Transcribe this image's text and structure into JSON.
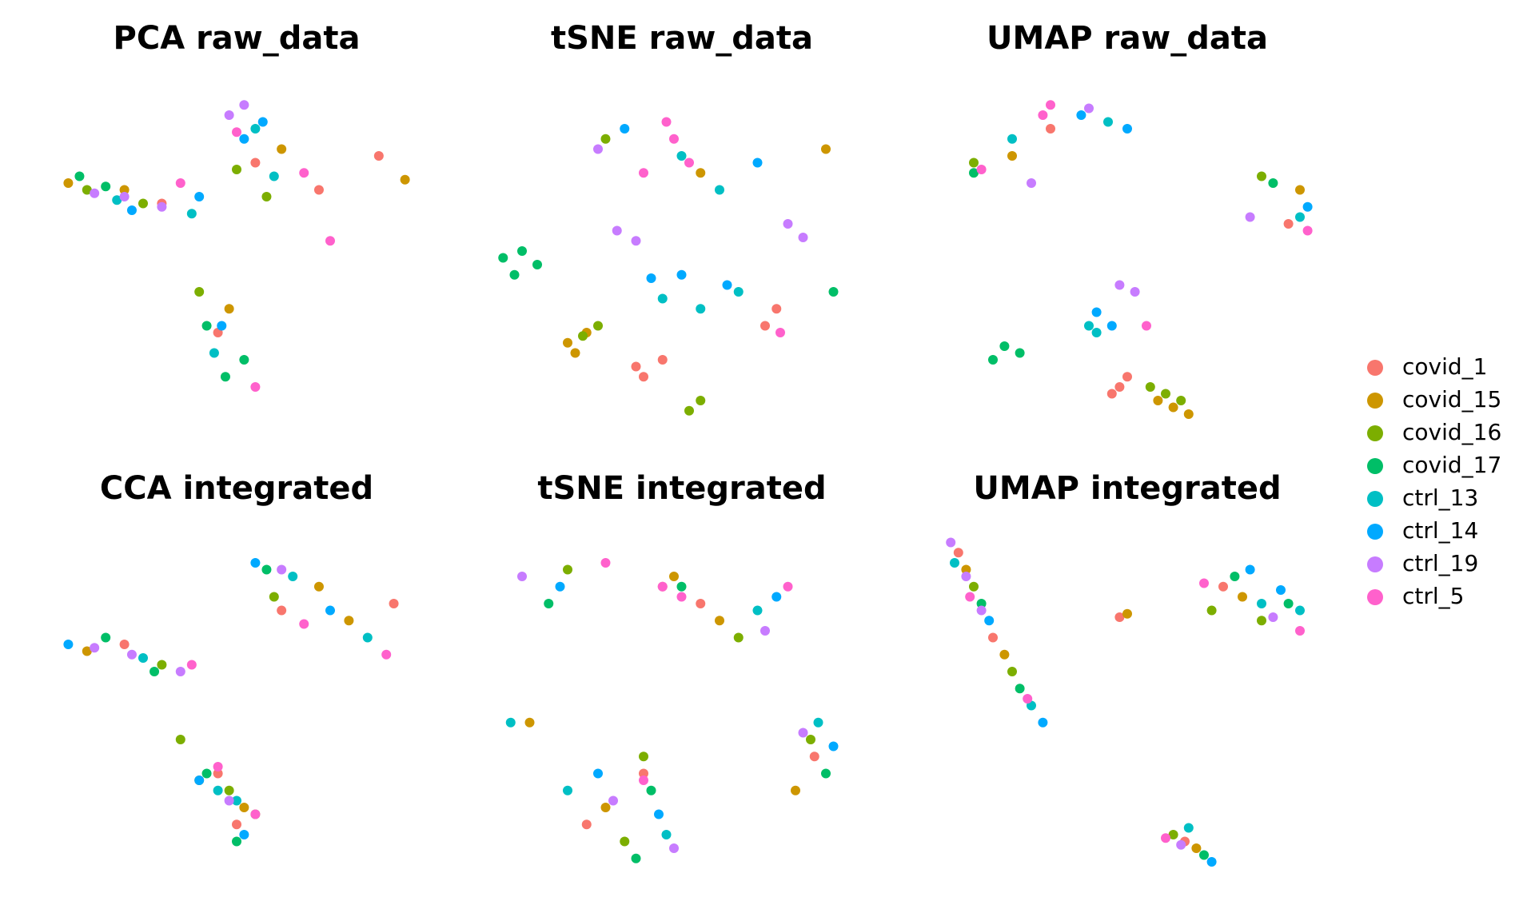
{
  "chart_data": [
    {
      "type": "scatter",
      "title": "PCA raw_data",
      "xlim": [
        0,
        100
      ],
      "ylim": [
        0,
        100
      ],
      "series": [
        {
          "x": [
            30,
            55,
            72,
            45,
            88
          ],
          "values": [
            66,
            78,
            70,
            28,
            80
          ]
        },
        {
          "x": [
            5,
            20,
            62,
            48,
            95
          ],
          "values": [
            72,
            70,
            82,
            35,
            73
          ]
        },
        {
          "x": [
            10,
            25,
            50,
            40,
            58
          ],
          "values": [
            70,
            66,
            76,
            40,
            68
          ]
        },
        {
          "x": [
            8,
            15,
            42,
            47,
            52
          ],
          "values": [
            74,
            71,
            30,
            15,
            20
          ]
        },
        {
          "x": [
            18,
            38,
            55,
            60,
            44
          ],
          "values": [
            67,
            63,
            88,
            74,
            22
          ]
        },
        {
          "x": [
            22,
            40,
            52,
            57,
            46
          ],
          "values": [
            64,
            68,
            85,
            90,
            30
          ]
        },
        {
          "x": [
            12,
            20,
            30,
            48,
            52
          ],
          "values": [
            69,
            68,
            65,
            92,
            95
          ]
        },
        {
          "x": [
            35,
            50,
            68,
            55,
            75
          ],
          "values": [
            72,
            87,
            75,
            12,
            55
          ]
        }
      ]
    },
    {
      "type": "scatter",
      "title": "tSNE raw_data",
      "xlim": [
        0,
        100
      ],
      "ylim": [
        0,
        100
      ],
      "series": [
        {
          "x": [
            40,
            45,
            38,
            72,
            75
          ],
          "values": [
            15,
            20,
            18,
            30,
            35
          ]
        },
        {
          "x": [
            20,
            25,
            22,
            55,
            88
          ],
          "values": [
            25,
            28,
            22,
            75,
            82
          ]
        },
        {
          "x": [
            24,
            28,
            52,
            55,
            30
          ],
          "values": [
            27,
            30,
            5,
            8,
            85
          ]
        },
        {
          "x": [
            3,
            8,
            12,
            6,
            90
          ],
          "values": [
            50,
            52,
            48,
            45,
            40
          ]
        },
        {
          "x": [
            45,
            55,
            65,
            50,
            60
          ],
          "values": [
            38,
            35,
            40,
            80,
            70
          ]
        },
        {
          "x": [
            42,
            50,
            62,
            35,
            70
          ],
          "values": [
            44,
            45,
            42,
            88,
            78
          ]
        },
        {
          "x": [
            33,
            38,
            78,
            82,
            28
          ],
          "values": [
            58,
            55,
            60,
            56,
            82
          ]
        },
        {
          "x": [
            48,
            52,
            46,
            76,
            40
          ],
          "values": [
            85,
            78,
            90,
            28,
            75
          ]
        }
      ]
    },
    {
      "type": "scatter",
      "title": "UMAP raw_data",
      "xlim": [
        0,
        100
      ],
      "ylim": [
        0,
        100
      ],
      "series": [
        {
          "x": [
            48,
            50,
            46,
            30,
            92
          ],
          "values": [
            12,
            15,
            10,
            88,
            60
          ]
        },
        {
          "x": [
            58,
            62,
            66,
            20,
            95
          ],
          "values": [
            8,
            6,
            4,
            80,
            70
          ]
        },
        {
          "x": [
            60,
            64,
            85,
            56,
            10
          ],
          "values": [
            10,
            8,
            74,
            12,
            78
          ]
        },
        {
          "x": [
            15,
            18,
            22,
            10,
            88
          ],
          "values": [
            20,
            24,
            22,
            75,
            72
          ]
        },
        {
          "x": [
            40,
            42,
            20,
            45,
            95
          ],
          "values": [
            30,
            28,
            85,
            90,
            62
          ]
        },
        {
          "x": [
            42,
            46,
            38,
            50,
            97
          ],
          "values": [
            34,
            30,
            92,
            88,
            65
          ]
        },
        {
          "x": [
            48,
            52,
            25,
            82,
            40
          ],
          "values": [
            42,
            40,
            72,
            62,
            94
          ]
        },
        {
          "x": [
            30,
            28,
            12,
            97,
            55
          ],
          "values": [
            95,
            92,
            76,
            58,
            30
          ]
        }
      ]
    },
    {
      "type": "scatter",
      "title": "CCA integrated",
      "xlim": [
        0,
        100
      ],
      "ylim": [
        0,
        100
      ],
      "series": [
        {
          "x": [
            20,
            45,
            62,
            50,
            92
          ],
          "values": [
            68,
            30,
            78,
            15,
            80
          ]
        },
        {
          "x": [
            10,
            52,
            72,
            40,
            80
          ],
          "values": [
            66,
            20,
            85,
            28,
            75
          ]
        },
        {
          "x": [
            30,
            48,
            60,
            55,
            35
          ],
          "values": [
            62,
            25,
            82,
            18,
            40
          ]
        },
        {
          "x": [
            15,
            42,
            58,
            50,
            28
          ],
          "values": [
            70,
            30,
            90,
            10,
            60
          ]
        },
        {
          "x": [
            25,
            50,
            65,
            45,
            85
          ],
          "values": [
            64,
            22,
            88,
            25,
            70
          ]
        },
        {
          "x": [
            5,
            40,
            55,
            52,
            75
          ],
          "values": [
            68,
            28,
            92,
            12,
            78
          ]
        },
        {
          "x": [
            12,
            22,
            35,
            62,
            48
          ],
          "values": [
            67,
            65,
            60,
            90,
            22
          ]
        },
        {
          "x": [
            38,
            55,
            68,
            45,
            90
          ],
          "values": [
            62,
            18,
            74,
            32,
            65
          ]
        }
      ]
    },
    {
      "type": "scatter",
      "title": "tSNE integrated",
      "xlim": [
        0,
        100
      ],
      "ylim": [
        0,
        100
      ],
      "series": [
        {
          "x": [
            25,
            45,
            55,
            40,
            85
          ],
          "values": [
            15,
            85,
            80,
            30,
            35
          ]
        },
        {
          "x": [
            30,
            48,
            60,
            80,
            10
          ],
          "values": [
            20,
            88,
            75,
            25,
            45
          ]
        },
        {
          "x": [
            35,
            40,
            65,
            84,
            20
          ],
          "values": [
            10,
            35,
            70,
            40,
            90
          ]
        },
        {
          "x": [
            38,
            42,
            50,
            88,
            15
          ],
          "values": [
            5,
            25,
            85,
            30,
            80
          ]
        },
        {
          "x": [
            20,
            46,
            70,
            86,
            5
          ],
          "values": [
            25,
            12,
            78,
            45,
            45
          ]
        },
        {
          "x": [
            28,
            44,
            75,
            90,
            18
          ],
          "values": [
            30,
            18,
            82,
            38,
            85
          ]
        },
        {
          "x": [
            32,
            48,
            72,
            82,
            8
          ],
          "values": [
            22,
            8,
            72,
            42,
            88
          ]
        },
        {
          "x": [
            40,
            50,
            45,
            30,
            78
          ],
          "values": [
            28,
            82,
            85,
            92,
            85
          ]
        }
      ]
    },
    {
      "type": "scatter",
      "title": "UMAP integrated",
      "xlim": [
        0,
        100
      ],
      "ylim": [
        0,
        100
      ],
      "series": [
        {
          "x": [
            6,
            15,
            75,
            65,
            48
          ],
          "values": [
            95,
            70,
            85,
            10,
            76
          ]
        },
        {
          "x": [
            8,
            18,
            80,
            68,
            50
          ],
          "values": [
            90,
            65,
            82,
            8,
            77
          ]
        },
        {
          "x": [
            10,
            20,
            72,
            62,
            85
          ],
          "values": [
            85,
            60,
            78,
            12,
            75
          ]
        },
        {
          "x": [
            12,
            22,
            78,
            70,
            92
          ],
          "values": [
            80,
            55,
            88,
            6,
            80
          ]
        },
        {
          "x": [
            5,
            25,
            85,
            66,
            95
          ],
          "values": [
            92,
            50,
            80,
            14,
            78
          ]
        },
        {
          "x": [
            14,
            28,
            90,
            72,
            82
          ],
          "values": [
            75,
            45,
            84,
            4,
            90
          ]
        },
        {
          "x": [
            4,
            8,
            12,
            88,
            64
          ],
          "values": [
            98,
            88,
            78,
            76,
            9
          ]
        },
        {
          "x": [
            9,
            24,
            70,
            60,
            95
          ],
          "values": [
            82,
            52,
            86,
            11,
            72
          ]
        }
      ]
    }
  ],
  "legend": [
    {
      "name": "covid_1",
      "color": "#F8766D"
    },
    {
      "name": "covid_15",
      "color": "#CD9600"
    },
    {
      "name": "covid_16",
      "color": "#7CAE00"
    },
    {
      "name": "covid_17",
      "color": "#00BE67"
    },
    {
      "name": "ctrl_13",
      "color": "#00BFC4"
    },
    {
      "name": "ctrl_14",
      "color": "#00A9FF"
    },
    {
      "name": "ctrl_19",
      "color": "#C77CFF"
    },
    {
      "name": "ctrl_5",
      "color": "#FF61CC"
    }
  ]
}
